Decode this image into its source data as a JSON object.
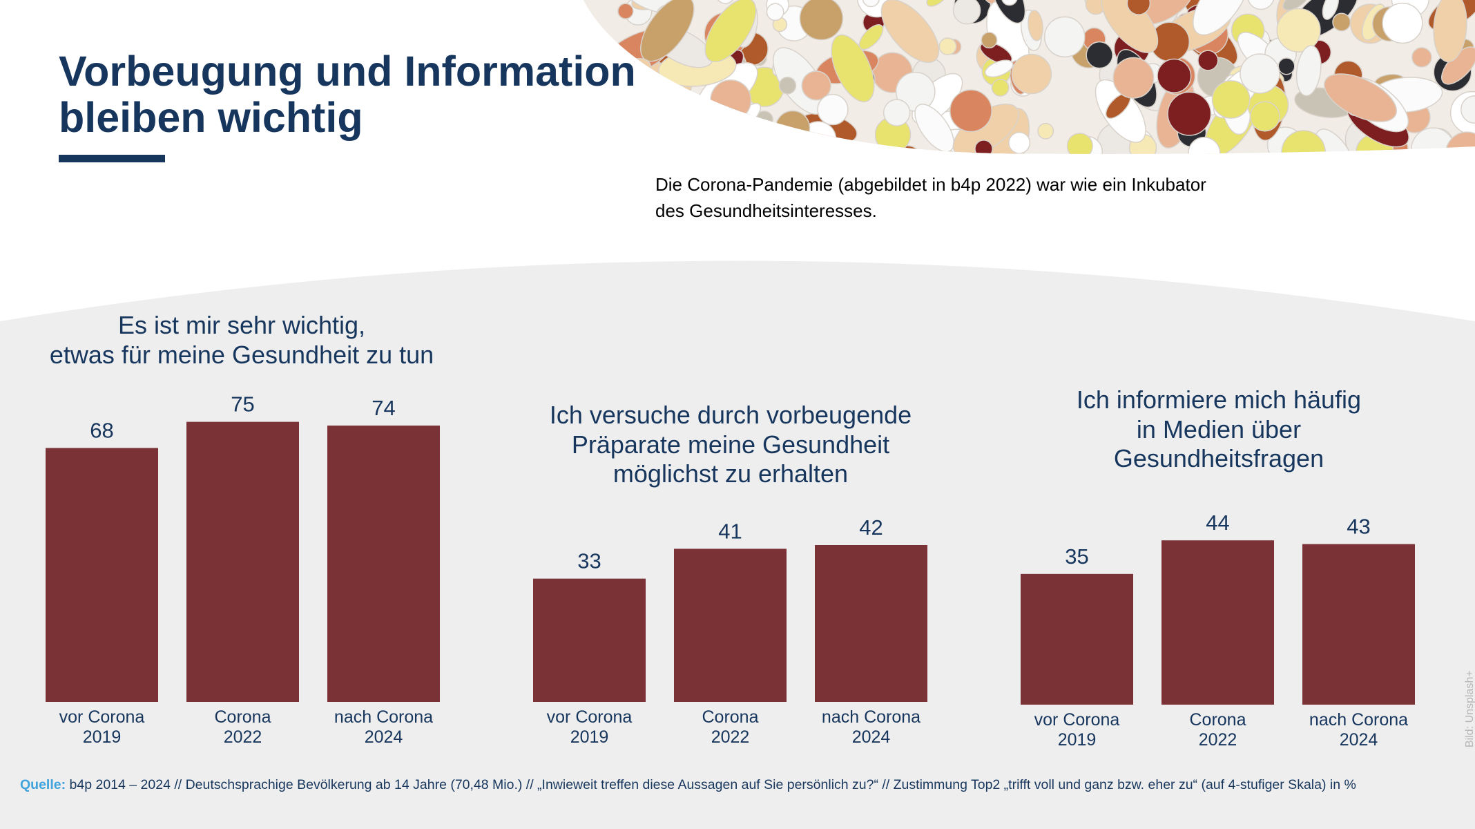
{
  "header": {
    "title_lines": [
      "Vorbeugung und Information",
      "bleiben wichtig"
    ],
    "intro_lines": [
      "Die Corona-Pandemie (abgebildet in b4p 2022) war wie ein Inkubator",
      "des Gesundheitsinteresses."
    ]
  },
  "colors": {
    "title": "#17365d",
    "bar": "#7a3236",
    "panel_background": "#eeeeee",
    "source_label": "#3ea3dc"
  },
  "chart_data": [
    {
      "type": "bar",
      "title_lines": [
        "Es ist mir sehr wichtig,",
        "etwas für meine Gesundheit zu tun"
      ],
      "categories": [
        [
          "vor Corona",
          "2019"
        ],
        [
          "Corona",
          "2022"
        ],
        [
          "nach Corona",
          "2024"
        ]
      ],
      "values": [
        68,
        75,
        74
      ],
      "unit": "%",
      "grid": false,
      "axes_visible": false
    },
    {
      "type": "bar",
      "title_lines": [
        "Ich versuche durch vorbeugende",
        "Präparate meine Gesundheit",
        "möglichst zu erhalten"
      ],
      "categories": [
        [
          "vor Corona",
          "2019"
        ],
        [
          "Corona",
          "2022"
        ],
        [
          "nach Corona",
          "2024"
        ]
      ],
      "values": [
        33,
        41,
        42
      ],
      "unit": "%",
      "grid": false,
      "axes_visible": false
    },
    {
      "type": "bar",
      "title_lines": [
        "Ich informiere mich häufig",
        "in Medien über",
        "Gesundheitsfragen"
      ],
      "categories": [
        [
          "vor Corona",
          "2019"
        ],
        [
          "Corona",
          "2022"
        ],
        [
          "nach Corona",
          "2024"
        ]
      ],
      "values": [
        35,
        44,
        43
      ],
      "unit": "%",
      "grid": false,
      "axes_visible": false
    }
  ],
  "footer": {
    "source_label": "Quelle:",
    "source_text": "b4p 2014 – 2024 // Deutschsprachige Bevölkerung ab 14 Jahre (70,48 Mio.) // „Inwieweit treffen diese Aussagen auf Sie persönlich zu?“ // Zustimmung Top2 „trifft voll und ganz bzw. eher zu“ (auf 4-stufiger Skala) in %",
    "image_credit": "Bild: Unsplash+"
  }
}
